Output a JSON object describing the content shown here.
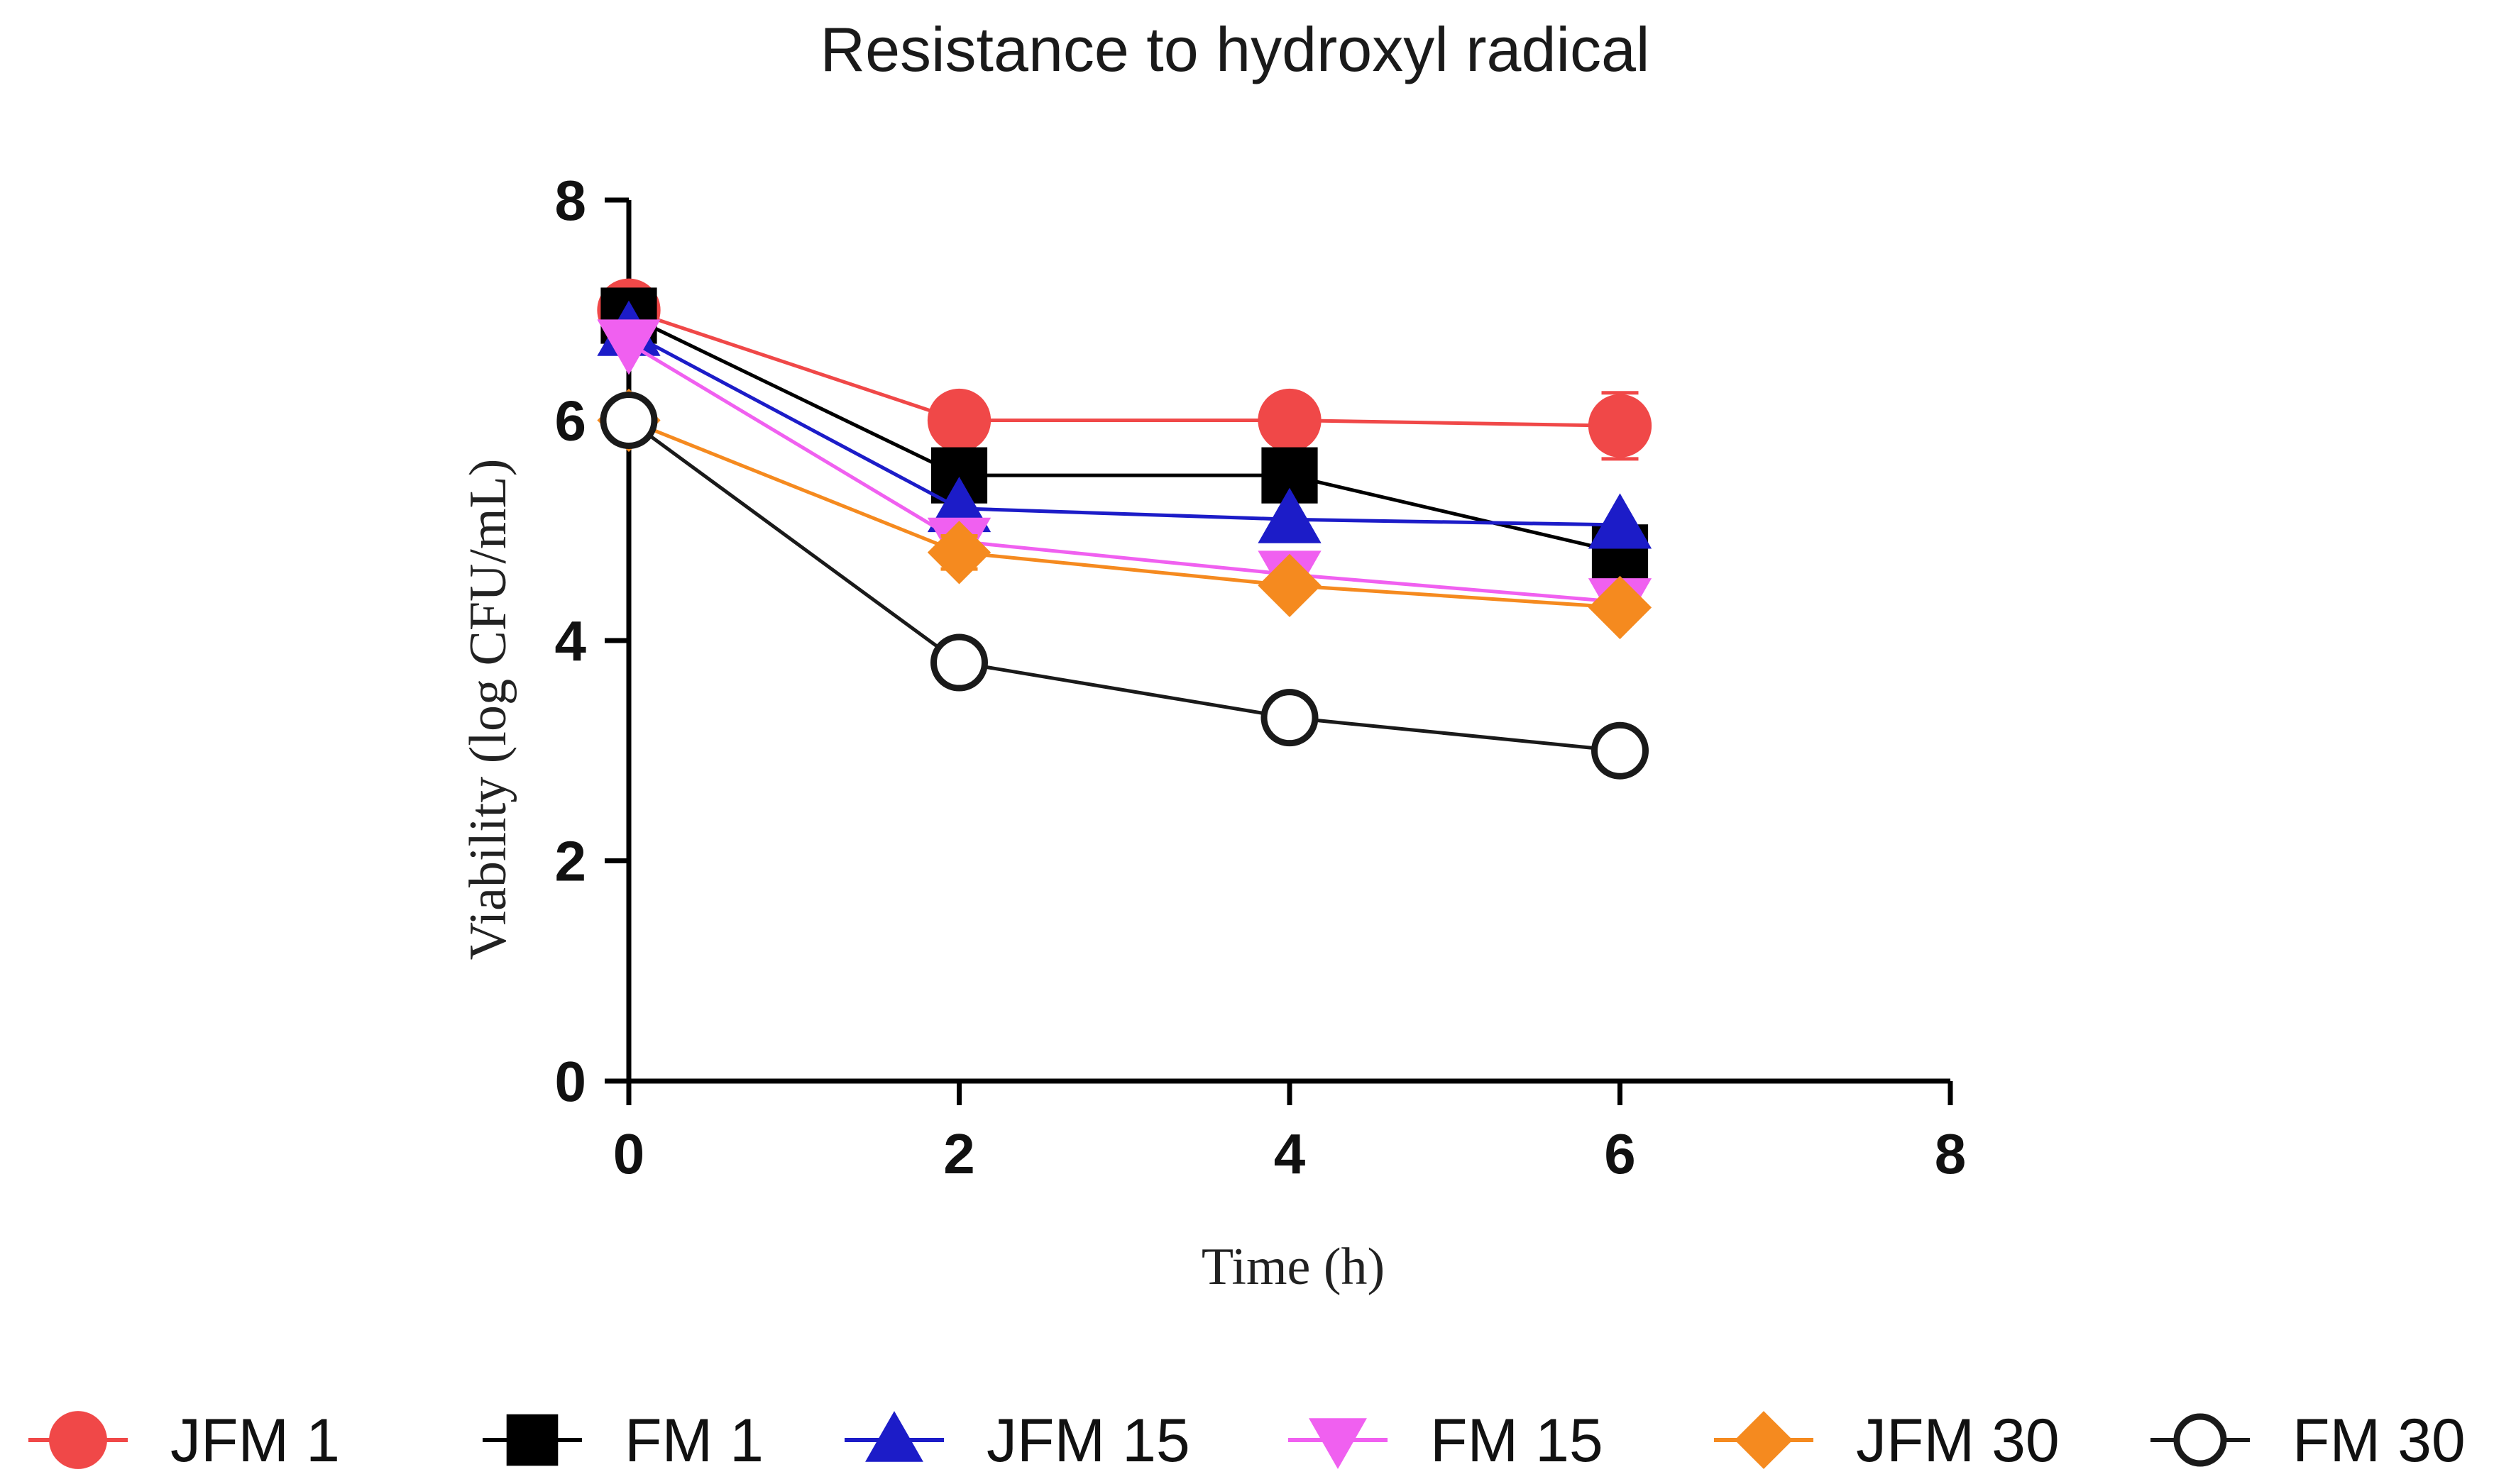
{
  "chart_data": {
    "type": "line",
    "title": "Resistance to hydroxyl radical",
    "xlabel": "Time (h)",
    "ylabel": "Viability (log CFU/mL)",
    "xlim": [
      0,
      8
    ],
    "ylim": [
      0,
      8
    ],
    "xticks": [
      0,
      2,
      4,
      6,
      8
    ],
    "yticks": [
      0,
      2,
      4,
      6,
      8
    ],
    "x": [
      0,
      2,
      4,
      6
    ],
    "grid": false,
    "legend_position": "bottom",
    "series": [
      {
        "name": "JFM 1",
        "color": "#f04848",
        "marker": "circle-filled",
        "values": [
          7.0,
          6.0,
          6.0,
          5.95
        ],
        "errors": [
          0.05,
          0.1,
          0.05,
          0.3
        ]
      },
      {
        "name": "FM 1",
        "color": "#000000",
        "marker": "square-filled",
        "values": [
          6.95,
          5.5,
          5.5,
          4.8
        ],
        "errors": [
          0.05,
          0.1,
          0.05,
          0.1
        ]
      },
      {
        "name": "JFM 15",
        "color": "#1c1cc8",
        "marker": "triangle-up",
        "values": [
          6.8,
          5.2,
          5.1,
          5.05
        ],
        "errors": [
          0.05,
          0.05,
          0.05,
          0.05
        ]
      },
      {
        "name": "FM 15",
        "color": "#f060f0",
        "marker": "triangle-down",
        "values": [
          6.7,
          4.9,
          4.6,
          4.35
        ],
        "errors": [
          0.05,
          0.05,
          0.05,
          0.05
        ]
      },
      {
        "name": "JFM 30",
        "color": "#f58a1f",
        "marker": "diamond-filled",
        "values": [
          6.0,
          4.8,
          4.5,
          4.3
        ],
        "errors": [
          0.05,
          0.15,
          0.05,
          0.05
        ]
      },
      {
        "name": "FM 30",
        "color": "#1a1a1a",
        "marker": "circle-open",
        "values": [
          6.0,
          3.8,
          3.3,
          3.0
        ],
        "errors": [
          0.05,
          0.05,
          0.05,
          0.05
        ]
      }
    ]
  }
}
